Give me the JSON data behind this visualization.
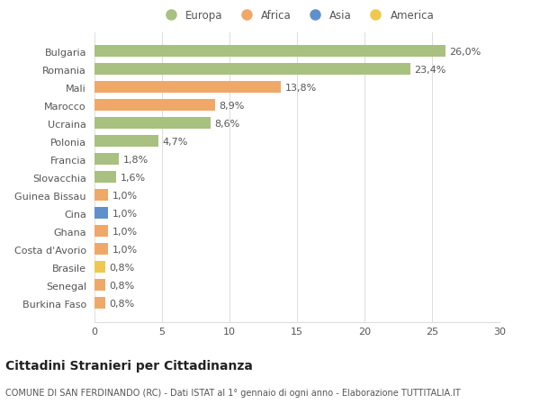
{
  "categories": [
    "Burkina Faso",
    "Senegal",
    "Brasile",
    "Costa d'Avorio",
    "Ghana",
    "Cina",
    "Guinea Bissau",
    "Slovacchia",
    "Francia",
    "Polonia",
    "Ucraina",
    "Marocco",
    "Mali",
    "Romania",
    "Bulgaria"
  ],
  "values": [
    0.8,
    0.8,
    0.8,
    1.0,
    1.0,
    1.0,
    1.0,
    1.6,
    1.8,
    4.7,
    8.6,
    8.9,
    13.8,
    23.4,
    26.0
  ],
  "labels": [
    "0,8%",
    "0,8%",
    "0,8%",
    "1,0%",
    "1,0%",
    "1,0%",
    "1,0%",
    "1,6%",
    "1,8%",
    "4,7%",
    "8,6%",
    "8,9%",
    "13,8%",
    "23,4%",
    "26,0%"
  ],
  "continents": [
    "Africa",
    "Africa",
    "America",
    "Africa",
    "Africa",
    "Asia",
    "Africa",
    "Europa",
    "Europa",
    "Europa",
    "Europa",
    "Africa",
    "Africa",
    "Europa",
    "Europa"
  ],
  "continent_colors": {
    "Europa": "#a8c080",
    "Africa": "#f0a868",
    "Asia": "#6090cc",
    "America": "#f0c850"
  },
  "legend_order": [
    "Europa",
    "Africa",
    "Asia",
    "America"
  ],
  "title": "Cittadini Stranieri per Cittadinanza",
  "subtitle": "COMUNE DI SAN FERDINANDO (RC) - Dati ISTAT al 1° gennaio di ogni anno - Elaborazione TUTTITALIA.IT",
  "xlim": [
    0,
    30
  ],
  "xticks": [
    0,
    5,
    10,
    15,
    20,
    25,
    30
  ],
  "background_color": "#ffffff",
  "grid_color": "#dddddd",
  "title_fontsize": 10,
  "subtitle_fontsize": 7,
  "label_fontsize": 8,
  "tick_fontsize": 8,
  "legend_fontsize": 8.5
}
